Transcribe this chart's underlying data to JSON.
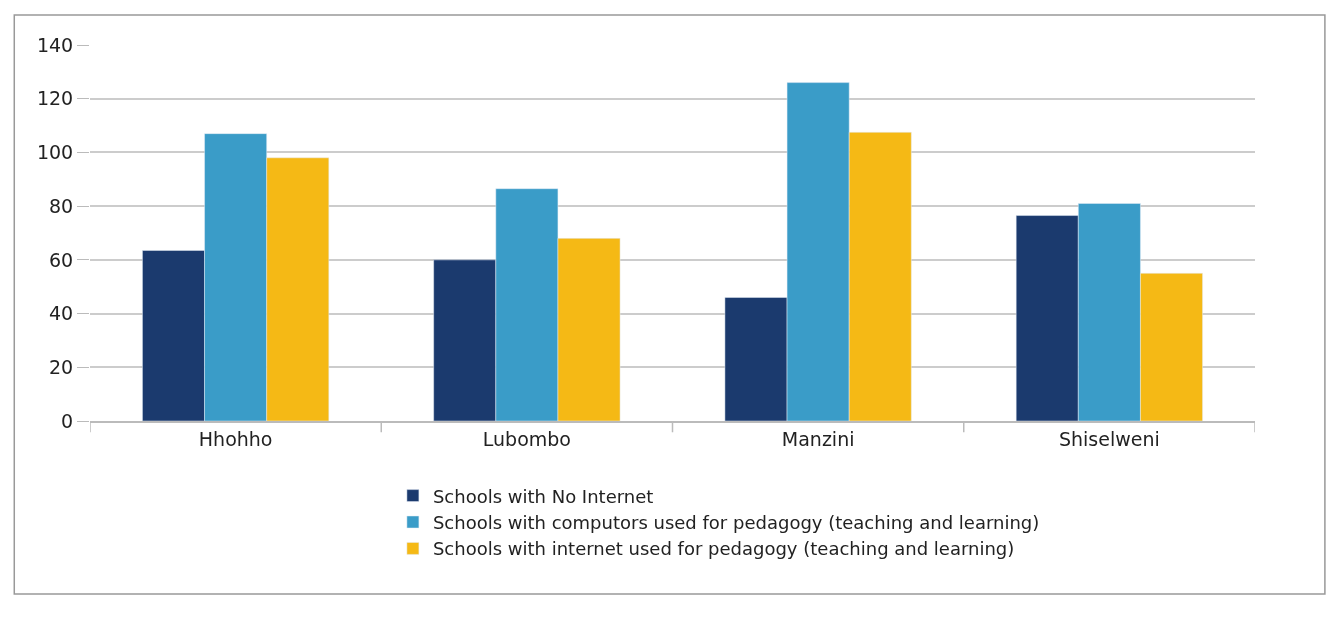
{
  "chart_data": {
    "type": "bar",
    "categories": [
      "Hhohho",
      "Lubombo",
      "Manzini",
      "Shiselweni"
    ],
    "series": [
      {
        "name": "Schools with No Internet",
        "color": "#1b3a6e",
        "values": [
          63.5,
          60,
          46,
          76.5
        ]
      },
      {
        "name": "Schools with computors used for pedagogy (teaching and learning)",
        "color": "#3a9cc8",
        "values": [
          107,
          86.5,
          126,
          81
        ]
      },
      {
        "name": "Schools with internet used for pedagogy (teaching and learning)",
        "color": "#f5b915",
        "values": [
          98,
          68,
          107.5,
          55
        ]
      }
    ],
    "ylim": [
      0,
      140
    ],
    "yticks": [
      0,
      20,
      40,
      60,
      80,
      100,
      120,
      140
    ],
    "grid": "y",
    "legend": "bottom"
  }
}
